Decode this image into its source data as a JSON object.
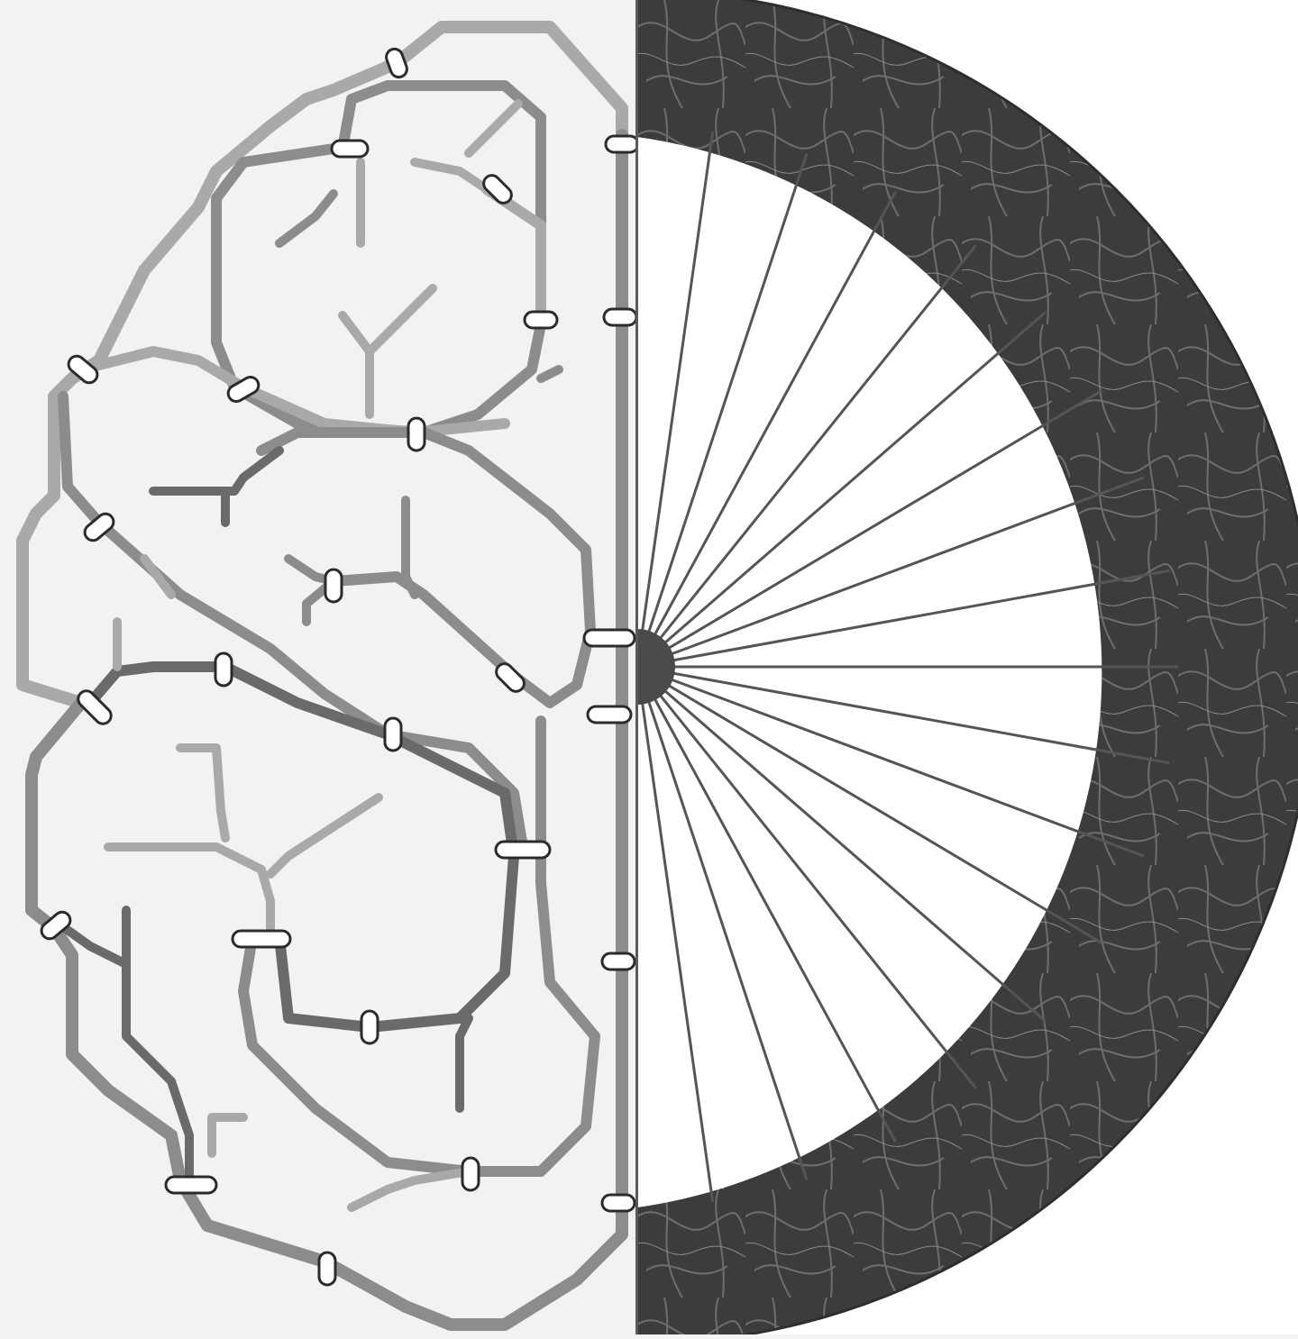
{
  "scene": {
    "description_left": "brain-as-metro-map",
    "description_right": "bicycle-wheel-half",
    "colors": {
      "left_background": "#f2f2f2",
      "right_background": "#ffffff",
      "track_light": "#a9a9a9",
      "track_mid": "#8c8c8c",
      "track_dark": "#6a6a6a",
      "station_fill": "#ffffff",
      "station_stroke": "#2b2b2b",
      "rim_dark": "#3c3c3c",
      "rim_texture": "#6e6e6e",
      "spoke": "#555555",
      "hub": "#4a4a4a"
    },
    "wheel": {
      "spoke_count": 17
    }
  }
}
